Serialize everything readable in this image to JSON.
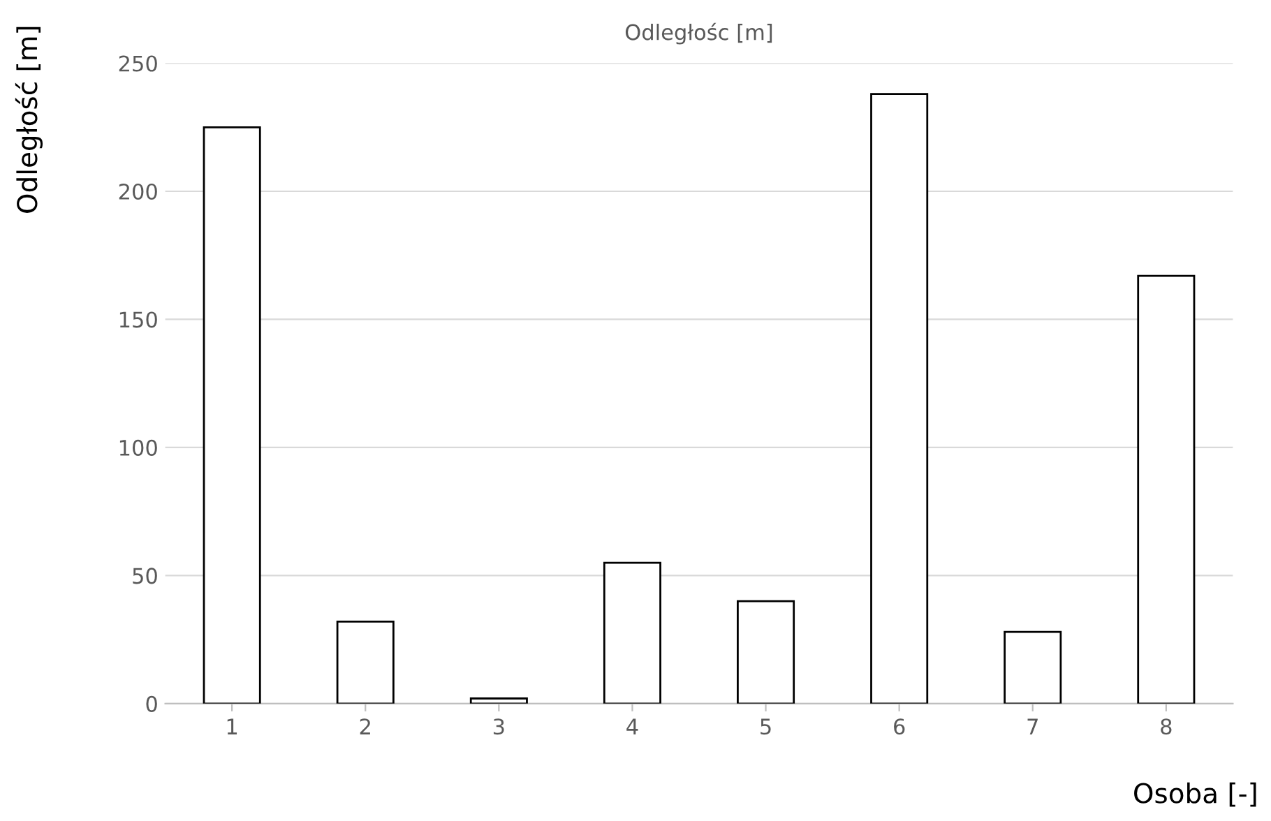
{
  "chart_data": {
    "type": "bar",
    "title": "Odległośc [m]",
    "xlabel": "Osoba [-]",
    "ylabel": "Odległość [m]",
    "categories": [
      "1",
      "2",
      "3",
      "4",
      "5",
      "6",
      "7",
      "8"
    ],
    "values": [
      225,
      32,
      2,
      55,
      40,
      238,
      28,
      167
    ],
    "color": "#ffffff",
    "ylim": [
      0,
      250
    ],
    "yticks": [
      0,
      50,
      100,
      150,
      200,
      250
    ],
    "grid": "y"
  }
}
